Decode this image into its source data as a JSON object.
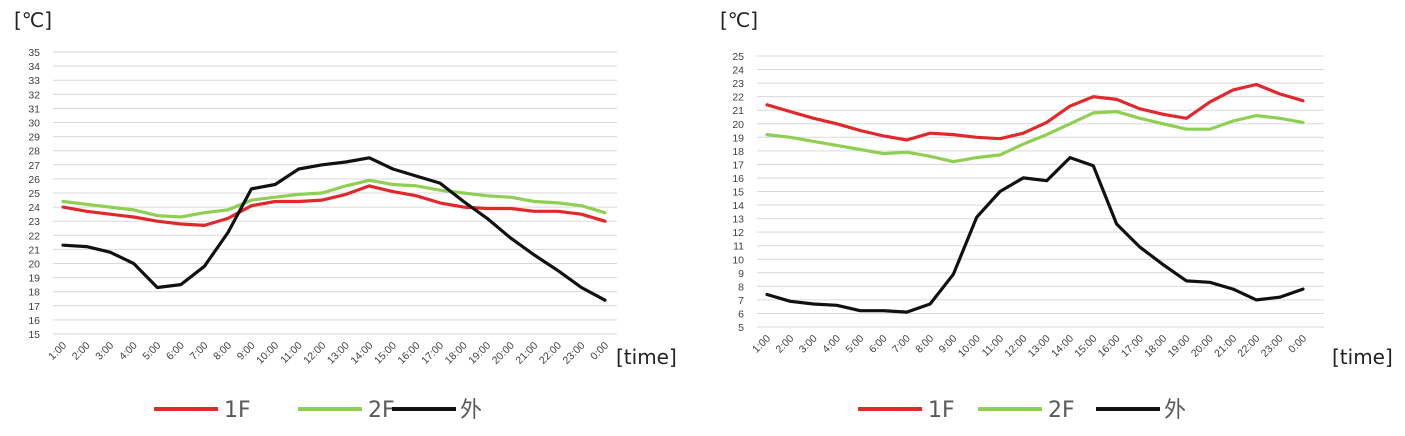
{
  "colors": {
    "1F": "#e0292c",
    "2F": "#8fcf53",
    "外": "#111111",
    "grid": "#d9d9d9"
  },
  "chart_data": [
    {
      "type": "line",
      "ylabel": "[℃]",
      "xlabel": "[time]",
      "ylim": [
        15,
        35
      ],
      "yticks": [
        15,
        16,
        17,
        18,
        19,
        20,
        21,
        22,
        23,
        24,
        25,
        26,
        27,
        28,
        29,
        30,
        31,
        32,
        33,
        34,
        35
      ],
      "grid": true,
      "legend": "bottom",
      "categories": [
        "1:00",
        "2:00",
        "3:00",
        "4:00",
        "5:00",
        "6:00",
        "7:00",
        "8:00",
        "9:00",
        "10:00",
        "11:00",
        "12:00",
        "13:00",
        "14:00",
        "15:00",
        "16:00",
        "17:00",
        "18:00",
        "19:00",
        "20:00",
        "21:00",
        "22:00",
        "23:00",
        "0:00"
      ],
      "series": [
        {
          "name": "1F",
          "values": [
            24.0,
            23.7,
            23.5,
            23.3,
            23.0,
            22.8,
            22.7,
            23.2,
            24.1,
            24.4,
            24.4,
            24.5,
            24.9,
            25.5,
            25.1,
            24.8,
            24.3,
            24.0,
            23.9,
            23.9,
            23.7,
            23.7,
            23.5,
            23.0
          ]
        },
        {
          "name": "2F",
          "values": [
            24.4,
            24.2,
            24.0,
            23.8,
            23.4,
            23.3,
            23.6,
            23.8,
            24.5,
            24.7,
            24.9,
            25.0,
            25.5,
            25.9,
            25.6,
            25.5,
            25.2,
            25.0,
            24.8,
            24.7,
            24.4,
            24.3,
            24.1,
            23.6
          ]
        },
        {
          "name": "外",
          "values": [
            21.3,
            21.2,
            20.8,
            20.0,
            18.3,
            18.5,
            19.8,
            22.2,
            25.3,
            25.6,
            26.7,
            27.0,
            27.2,
            27.5,
            26.7,
            26.2,
            25.7,
            24.4,
            23.2,
            21.8,
            20.6,
            19.5,
            18.3,
            17.4
          ]
        }
      ]
    },
    {
      "type": "line",
      "ylabel": "[℃]",
      "xlabel": "[time]",
      "ylim": [
        5,
        25
      ],
      "yticks": [
        5,
        6,
        7,
        8,
        9,
        10,
        11,
        12,
        13,
        14,
        15,
        16,
        17,
        18,
        19,
        20,
        21,
        22,
        23,
        24,
        25
      ],
      "grid": true,
      "legend": "bottom",
      "categories": [
        "1:00",
        "2:00",
        "3:00",
        "4:00",
        "5:00",
        "6:00",
        "7:00",
        "8:00",
        "9:00",
        "10:00",
        "11:00",
        "12:00",
        "13:00",
        "14:00",
        "15:00",
        "16:00",
        "17:00",
        "18:00",
        "19:00",
        "20:00",
        "21:00",
        "22:00",
        "23:00",
        "0:00"
      ],
      "series": [
        {
          "name": "1F",
          "values": [
            21.4,
            20.9,
            20.4,
            20.0,
            19.5,
            19.1,
            18.8,
            19.3,
            19.2,
            19.0,
            18.9,
            19.3,
            20.1,
            21.3,
            22.0,
            21.8,
            21.1,
            20.7,
            20.4,
            21.6,
            22.5,
            22.9,
            22.2,
            21.7
          ]
        },
        {
          "name": "2F",
          "values": [
            19.2,
            19.0,
            18.7,
            18.4,
            18.1,
            17.8,
            17.9,
            17.6,
            17.2,
            17.5,
            17.7,
            18.5,
            19.2,
            20.0,
            20.8,
            20.9,
            20.4,
            20.0,
            19.6,
            19.6,
            20.2,
            20.6,
            20.4,
            20.1
          ]
        },
        {
          "name": "外",
          "values": [
            7.4,
            6.9,
            6.7,
            6.6,
            6.2,
            6.2,
            6.1,
            6.7,
            8.9,
            13.1,
            15.0,
            16.0,
            15.8,
            17.5,
            16.9,
            12.6,
            10.9,
            9.6,
            8.4,
            8.3,
            7.8,
            7.0,
            7.2,
            7.8
          ]
        }
      ]
    }
  ]
}
